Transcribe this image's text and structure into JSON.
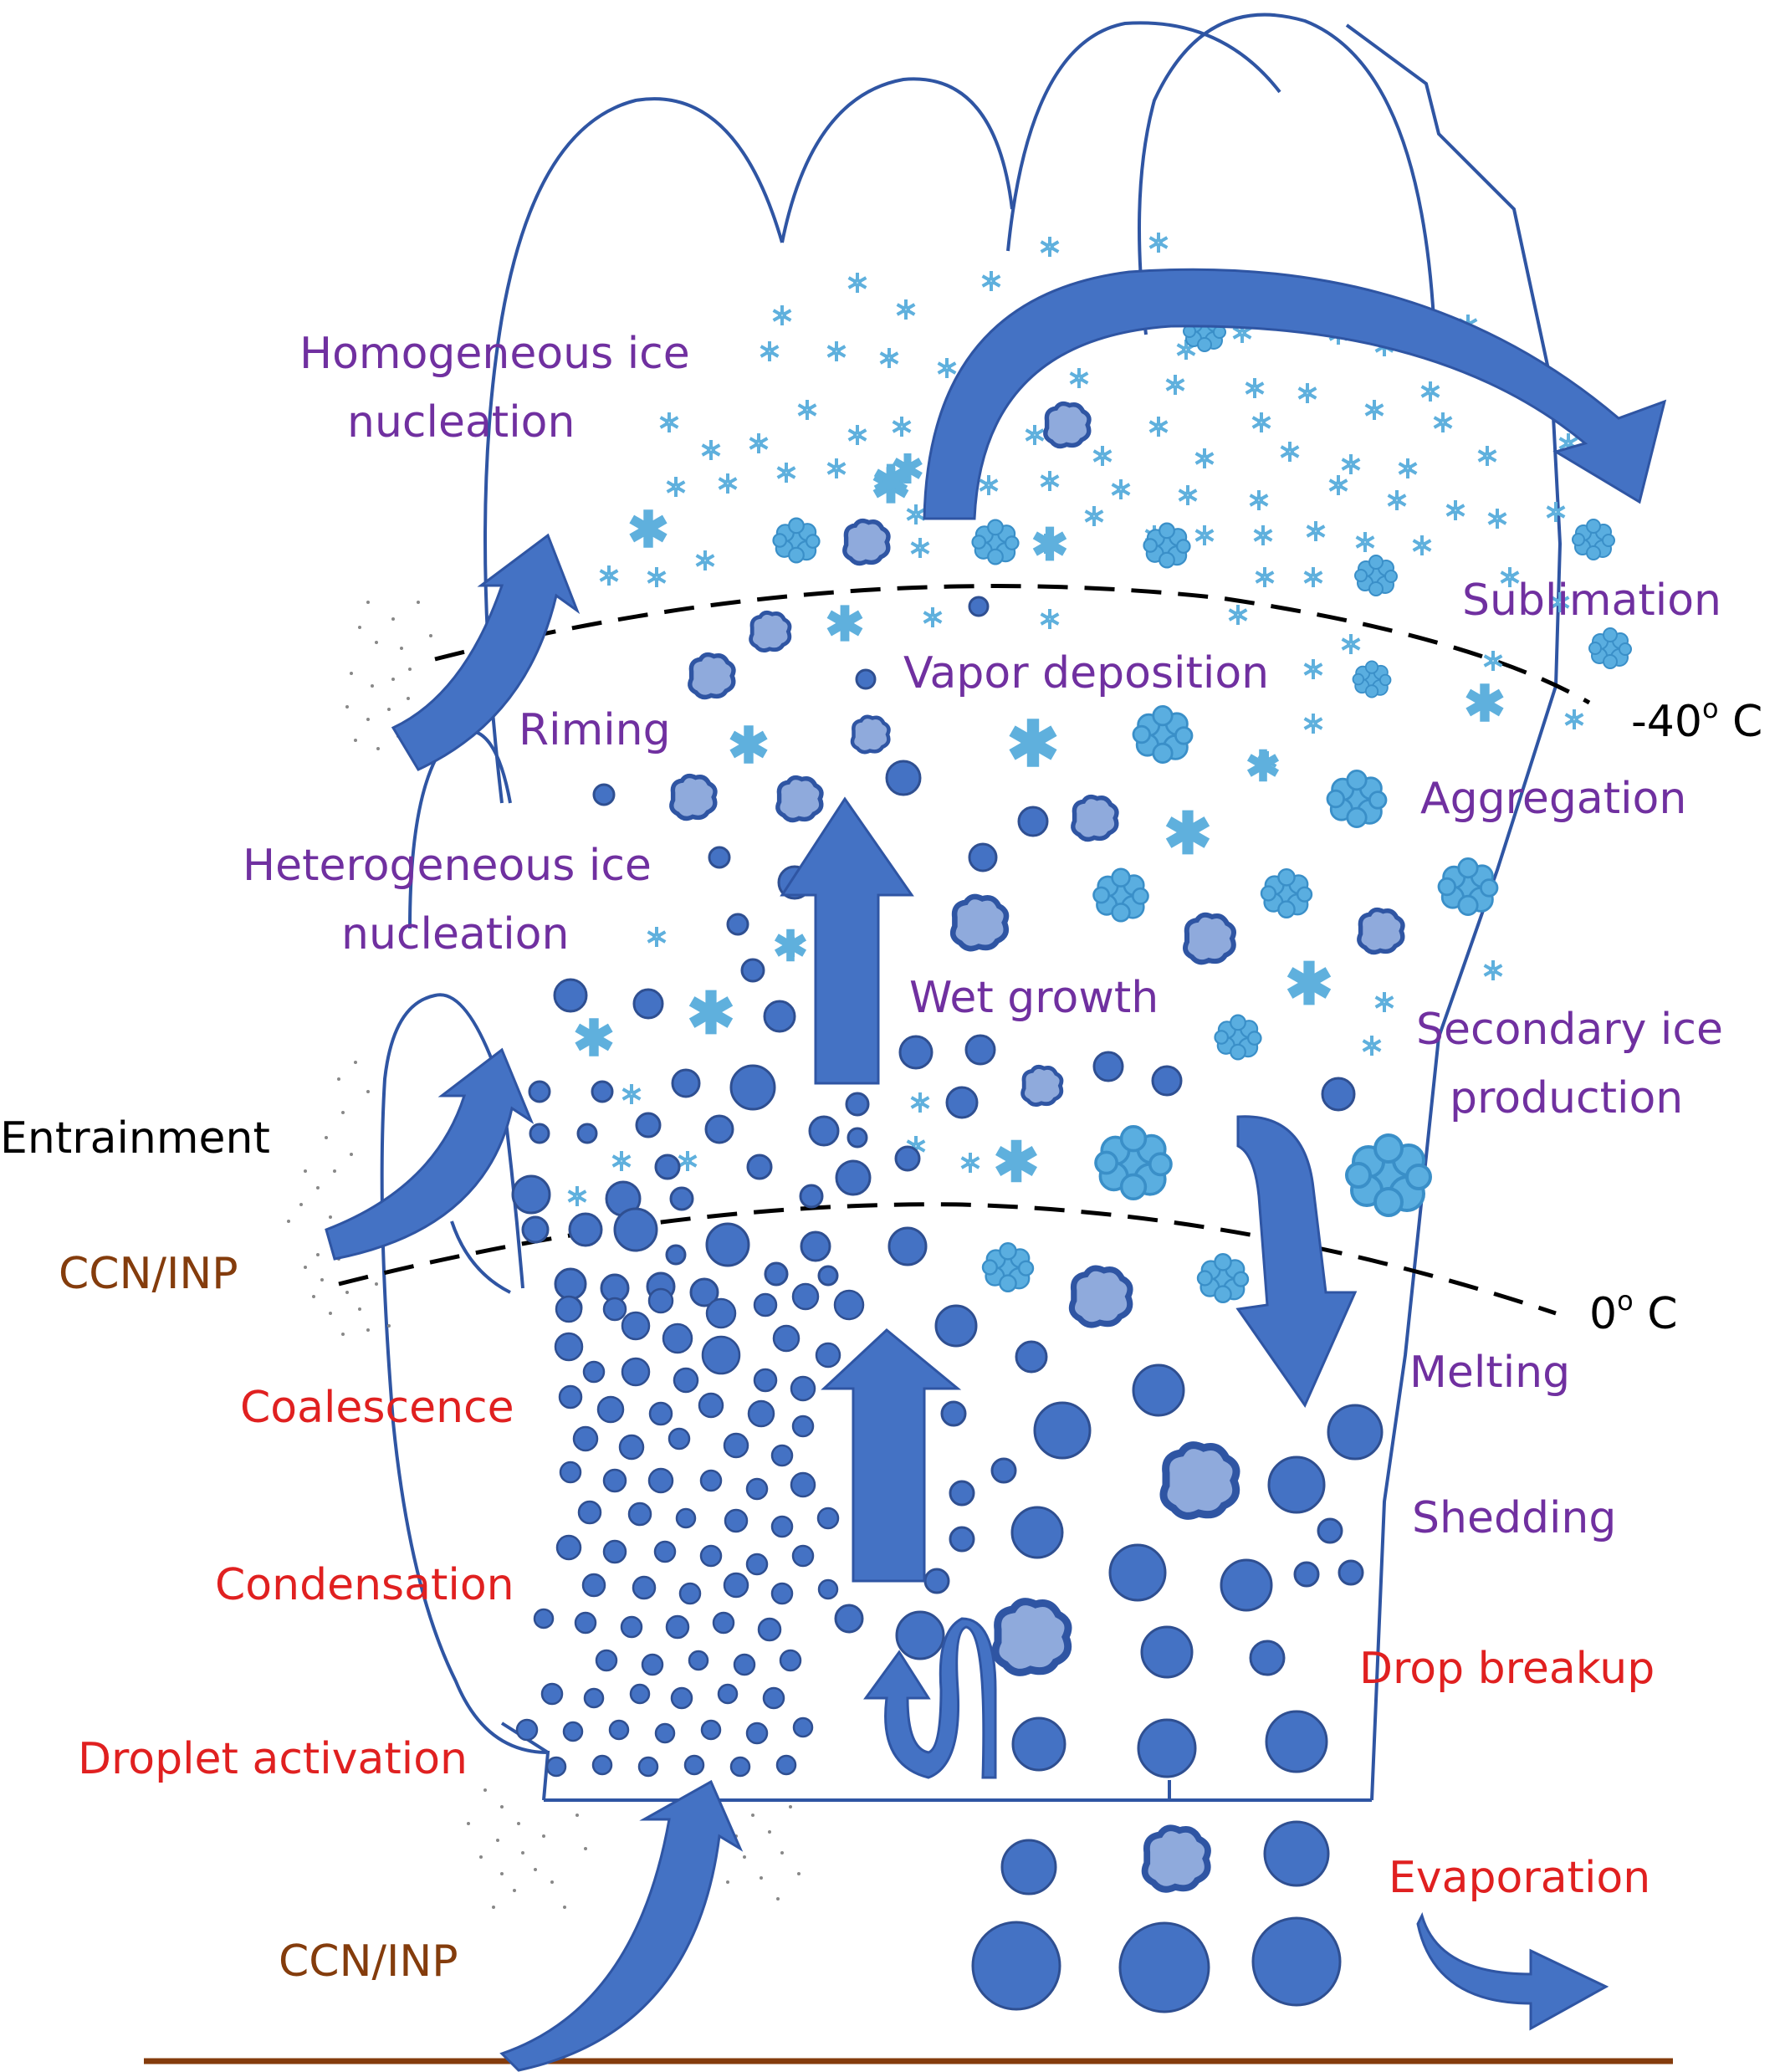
{
  "labels": {
    "homogeneous_ice_nucleation_1": "Homogeneous ice",
    "homogeneous_ice_nucleation_2": "nucleation",
    "sublimation": "Sublimation",
    "vapor_deposition": "Vapor deposition",
    "riming": "Riming",
    "minus40": "-40",
    "minus40_deg": "o",
    "minus40_unit": " C",
    "aggregation": "Aggregation",
    "heterogeneous_ice_nucleation_1": "Heterogeneous ice",
    "heterogeneous_ice_nucleation_2": "nucleation",
    "wet_growth": "Wet growth",
    "secondary_ice_production_1": "Secondary ice",
    "secondary_ice_production_2": "production",
    "entrainment": "Entrainment",
    "ccn_inp_mid": "CCN/INP",
    "zero": "0",
    "zero_deg": "o",
    "zero_unit": " C",
    "melting": "Melting",
    "coalescence": "Coalescence",
    "shedding": "Shedding",
    "condensation": "Condensation",
    "drop_breakup": "Drop breakup",
    "droplet_activation": "Droplet activation",
    "evaporation": "Evaporation",
    "ccn_inp_bottom": "CCN/INP"
  },
  "colors": {
    "cloud_outline": "#2f55a3",
    "arrow_fill": "#4472c4",
    "drop_fill": "#4472c4",
    "drop_stroke": "#2f4f91",
    "graupel_fill": "#8faadc",
    "snow": "#5fb0dd",
    "ice_process_text": "#7030a0",
    "liquid_process_text": "#e02020",
    "aerosol_text": "#843c0c",
    "neutral_text": "#000000",
    "ground": "#843c0c"
  }
}
